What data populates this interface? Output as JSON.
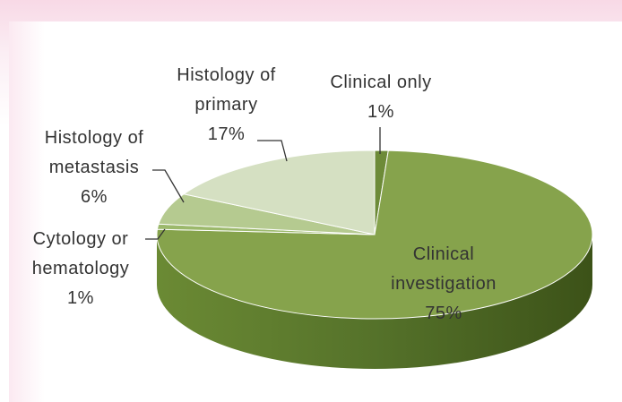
{
  "chart_data": {
    "type": "pie3d",
    "categories": [
      "Clinical only",
      "Clinical investigation",
      "Cytology or hematology",
      "Histology of metastasis",
      "Histology of primary"
    ],
    "values": [
      1,
      75,
      1,
      6,
      17
    ],
    "value_labels": [
      "1%",
      "75%",
      "1%",
      "6%",
      "17%"
    ],
    "colors": [
      "#6d8b38",
      "#86a34c",
      "#9cb96c",
      "#b5ca90",
      "#d5e0c2"
    ]
  }
}
